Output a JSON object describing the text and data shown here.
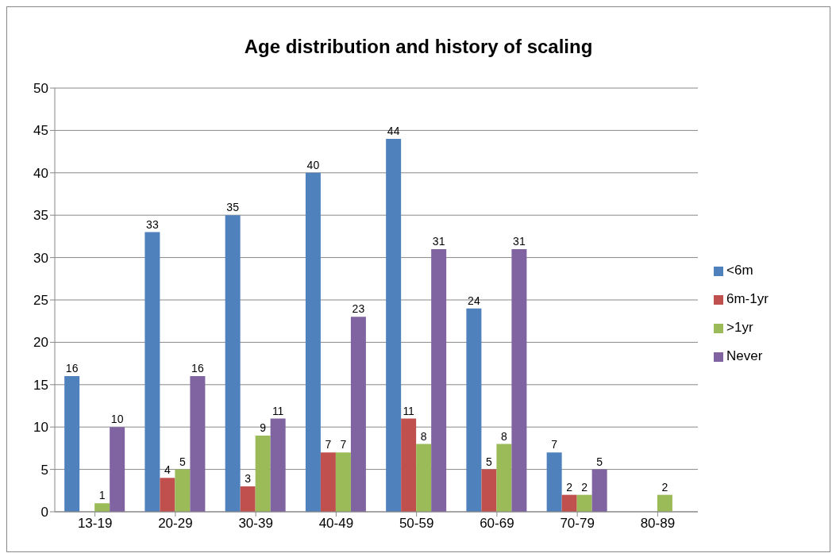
{
  "chart_data": {
    "type": "bar",
    "title": "Age distribution and history of scaling",
    "categories": [
      "13-19",
      "20-29",
      "30-39",
      "40-49",
      "50-59",
      "60-69",
      "70-79",
      "80-89"
    ],
    "series": [
      {
        "name": "<6m",
        "color": "#4f81bd",
        "values": [
          16,
          33,
          35,
          40,
          44,
          24,
          7,
          null
        ]
      },
      {
        "name": "6m-1yr",
        "color": "#c0504d",
        "values": [
          null,
          4,
          3,
          7,
          11,
          5,
          2,
          null
        ]
      },
      {
        "name": ">1yr",
        "color": "#9bbb59",
        "values": [
          1,
          5,
          9,
          7,
          8,
          8,
          2,
          2
        ]
      },
      {
        "name": "Never",
        "color": "#8064a2",
        "values": [
          10,
          16,
          11,
          23,
          31,
          31,
          5,
          null
        ]
      }
    ],
    "ylim": [
      0,
      50
    ],
    "yticks": [
      0,
      5,
      10,
      15,
      20,
      25,
      30,
      35,
      40,
      45,
      50
    ],
    "grid": "y",
    "legend": "right",
    "data_labels": true
  }
}
